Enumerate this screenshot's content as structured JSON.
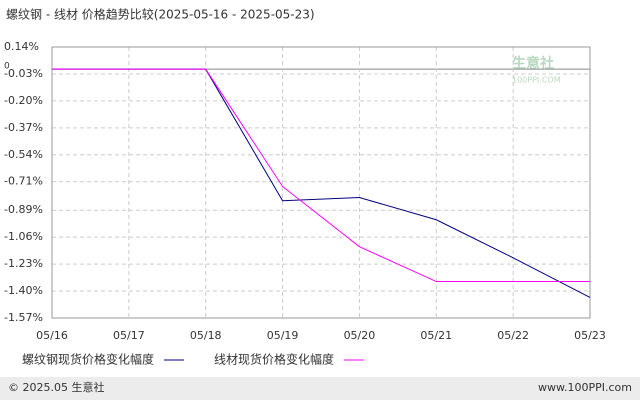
{
  "chart_data": {
    "type": "line",
    "title": "螺纹钢 - 线材 价格趋势比较(2025-05-16 - 2025-05-23)",
    "categories": [
      "05/16",
      "05/17",
      "05/18",
      "05/19",
      "05/20",
      "05/21",
      "05/22",
      "05/23"
    ],
    "series": [
      {
        "name": "螺纹钢现货价格变化幅度",
        "color": "#000080",
        "values": [
          0,
          0,
          0,
          -0.83,
          -0.81,
          -0.95,
          -1.19,
          -1.44
        ]
      },
      {
        "name": "线材现货价格变化幅度",
        "color": "#ff00ff",
        "values": [
          0,
          0,
          0,
          -0.74,
          -1.12,
          -1.34,
          -1.34,
          -1.34
        ]
      }
    ],
    "ylim": [
      -1.57,
      0.14
    ],
    "yticks": [
      {
        "value": 0.14,
        "label": "0.14%"
      },
      {
        "value": -0.03,
        "label": "-0.03%"
      },
      {
        "value": -0.2,
        "label": "-0.20%"
      },
      {
        "value": -0.37,
        "label": "-0.37%"
      },
      {
        "value": -0.54,
        "label": "-0.54%"
      },
      {
        "value": -0.71,
        "label": "-0.71%"
      },
      {
        "value": -0.89,
        "label": "-0.89%"
      },
      {
        "value": -1.06,
        "label": "-1.06%"
      },
      {
        "value": -1.23,
        "label": "-1.23%"
      },
      {
        "value": -1.4,
        "label": "-1.40%"
      },
      {
        "value": -1.57,
        "label": "-1.57%"
      }
    ],
    "zero_tick": 0,
    "grid": true,
    "watermark": {
      "name": "生意社",
      "site": "100PPI.COM"
    },
    "footer": {
      "left": "© 2025.05 生意社",
      "right": "www.100PPI.com"
    }
  }
}
